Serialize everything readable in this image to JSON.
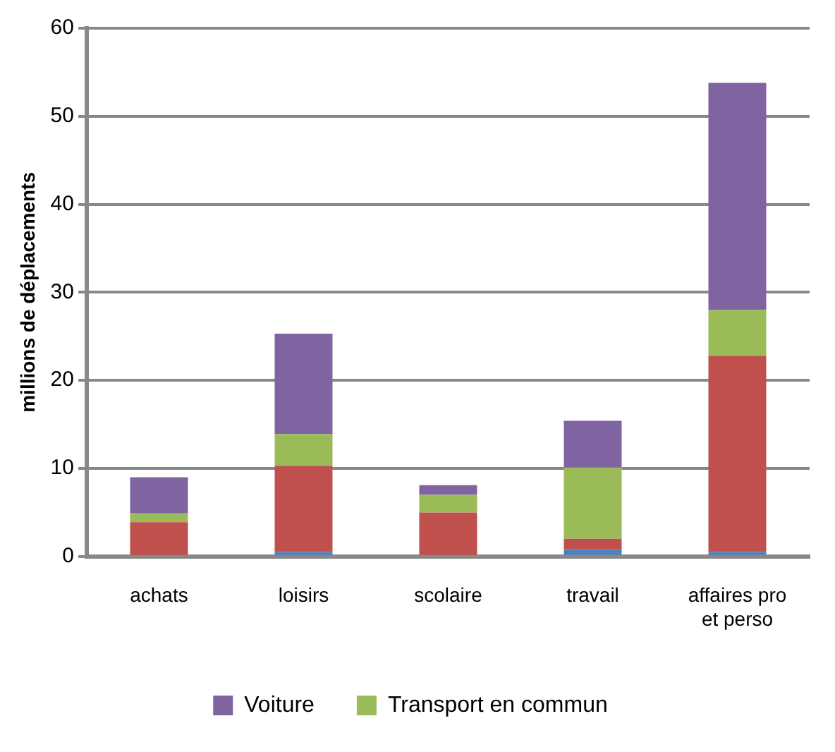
{
  "chart_data": {
    "type": "bar",
    "stacked": true,
    "ylabel": "millions de déplacements",
    "categories": [
      "achats",
      "loisirs",
      "scolaire",
      "travail",
      "affaires pro et perso"
    ],
    "series": [
      {
        "color": "#4f81bd",
        "values": [
          0,
          0.5,
          0,
          0.8,
          0.5
        ]
      },
      {
        "color": "#c0504d",
        "values": [
          3.9,
          9.8,
          5.0,
          1.2,
          22.3
        ]
      },
      {
        "name": "Transport en commun",
        "color": "#9bbb59",
        "values": [
          1.0,
          3.6,
          2.0,
          8.1,
          5.2
        ]
      },
      {
        "name": "Voiture",
        "color": "#8064a2",
        "values": [
          4.1,
          11.4,
          1.1,
          5.3,
          25.8
        ]
      }
    ],
    "ylim": [
      0,
      60
    ],
    "yticks": [
      0,
      10,
      20,
      30,
      40,
      50,
      60
    ],
    "grid": "y",
    "legend": "bottom"
  }
}
